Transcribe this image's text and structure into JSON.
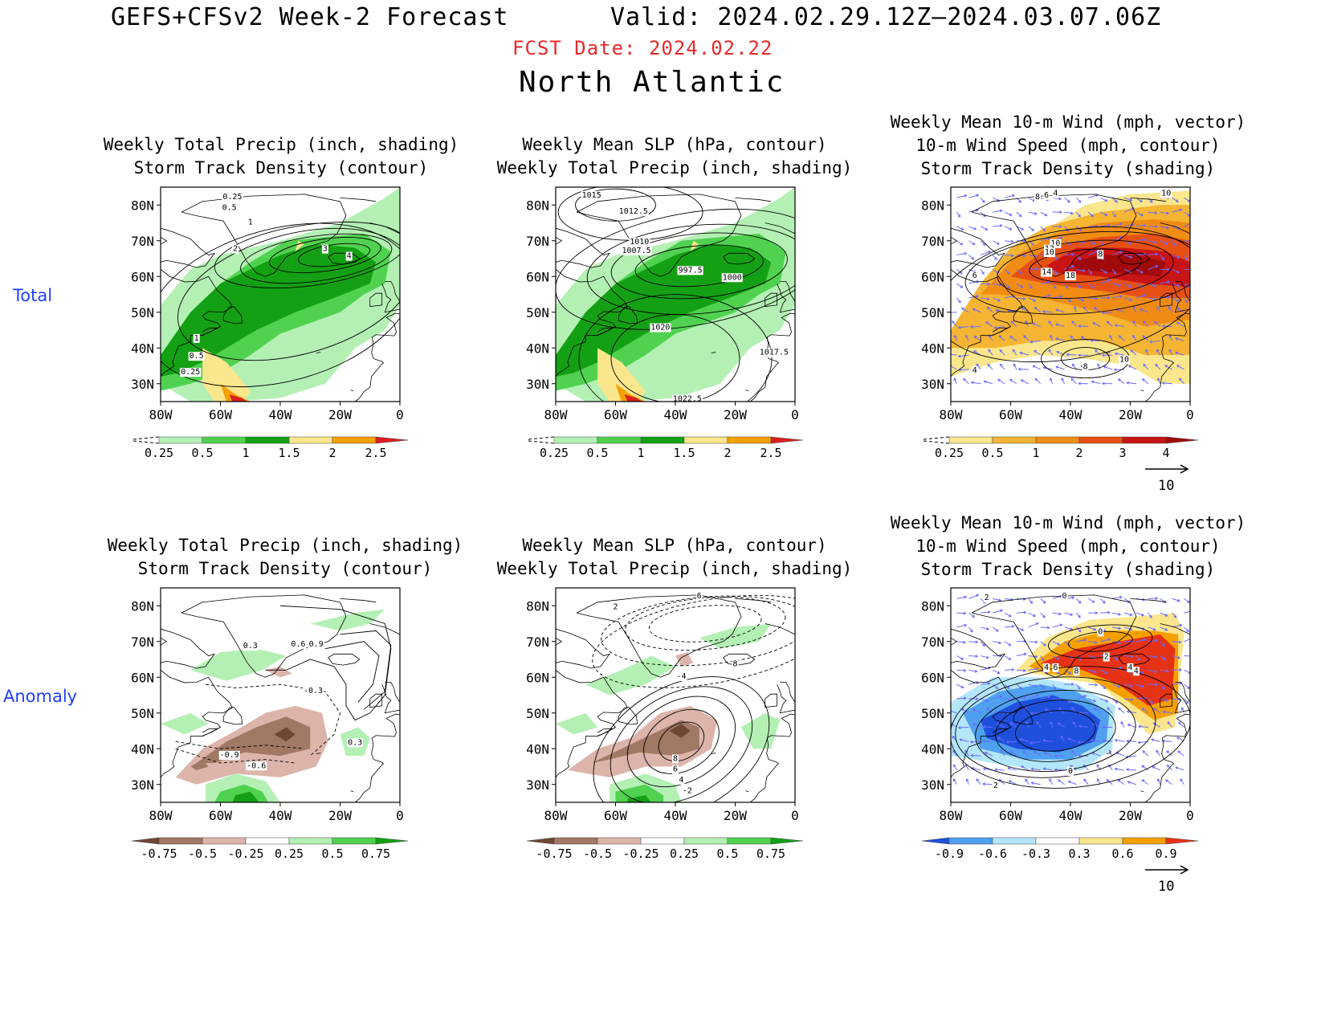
{
  "header": {
    "model": "GEFS+CFSv2 Week-2 Forecast",
    "valid": "Valid: 2024.02.29.12Z–2024.03.07.06Z",
    "fcst_date": "FCST Date: 2024.02.22",
    "region": "North Atlantic"
  },
  "row_labels": {
    "total": "Total",
    "anomaly": "Anomaly"
  },
  "axes": {
    "lat_labels": [
      "80N",
      "70N",
      "60N",
      "50N",
      "40N",
      "30N"
    ],
    "lon_labels": [
      "80W",
      "60W",
      "40W",
      "20W",
      "0"
    ]
  },
  "panels": {
    "p1": {
      "title": [
        "Weekly Total Precip (inch, shading)",
        "Storm Track Density (contour)"
      ],
      "contour_labels": [
        "0.25",
        "0.5",
        "1",
        "2",
        "3",
        "4",
        "1",
        "0.5",
        "0.25"
      ]
    },
    "p2": {
      "title": [
        "Weekly Mean SLP (hPa, contour)",
        "Weekly Total Precip (inch, shading)"
      ],
      "contour_labels": [
        "1015",
        "1012.5",
        "1010",
        "1007.5",
        "997.5",
        "1000",
        "1020",
        "1017.5",
        "1022.5"
      ]
    },
    "p3": {
      "title": [
        "Weekly Mean 10-m Wind (mph, vector)",
        "10-m Wind Speed (mph, contour)",
        "Storm Track Density (shading)"
      ],
      "contour_labels": [
        "8",
        "6",
        "4",
        "10",
        "10",
        "12",
        "10",
        "8",
        "6",
        "14",
        "18",
        "8",
        "10",
        "4"
      ]
    },
    "p4": {
      "title": [
        "Weekly Total Precip (inch, shading)",
        "Storm Track Density (contour)"
      ],
      "contour_labels": [
        "0.3",
        "0.6",
        "0.9",
        "-0.3",
        "-0.9",
        "-0.6",
        "0.3"
      ]
    },
    "p5": {
      "title": [
        "Weekly Mean SLP (hPa, contour)",
        "Weekly Total Precip (inch, shading)"
      ],
      "contour_labels": [
        "6",
        "2",
        "8",
        "-4",
        "8",
        "6",
        "4",
        "-2"
      ]
    },
    "p6": {
      "title": [
        "Weekly Mean 10-m Wind (mph, vector)",
        "10-m Wind Speed (mph, contour)",
        "Storm Track Density (shading)"
      ],
      "contour_labels": [
        "2",
        "0",
        "0",
        "2",
        "4",
        "6",
        "8",
        "4",
        "2",
        "0",
        "4"
      ]
    }
  },
  "colorbars": {
    "precip_total": {
      "labels": [
        "0.25",
        "0.5",
        "1",
        "1.5",
        "2",
        "2.5"
      ],
      "colors": [
        "#ffffff",
        "#b4f0b4",
        "#50d250",
        "#14a014",
        "#fae68c",
        "#f5a000",
        "#dc1e1e"
      ]
    },
    "storm_total": {
      "labels": [
        "0.25",
        "0.5",
        "1",
        "2",
        "3",
        "4"
      ],
      "colors": [
        "#ffffff",
        "#fae68c",
        "#f5b432",
        "#f08c14",
        "#e65014",
        "#c81414",
        "#a00a0a"
      ]
    },
    "precip_anom": {
      "labels": [
        "-0.75",
        "-0.5",
        "-0.25",
        "0.25",
        "0.5",
        "0.75"
      ],
      "colors": [
        "#6e4632",
        "#a07864",
        "#dcb4aa",
        "#ffffff",
        "#b4f0b4",
        "#50d250",
        "#14a014"
      ]
    },
    "storm_anom": {
      "labels": [
        "-0.9",
        "-0.6",
        "-0.3",
        "0.3",
        "0.6",
        "0.9"
      ],
      "colors": [
        "#1e50dc",
        "#50a0f0",
        "#b4e6fa",
        "#ffffff",
        "#fae68c",
        "#f5a000",
        "#e63214"
      ]
    },
    "vector_ref": "10"
  }
}
